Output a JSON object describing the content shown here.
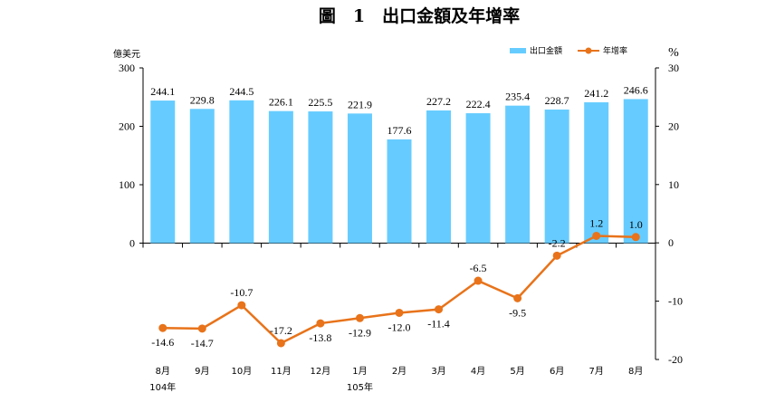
{
  "chart_data": {
    "type": "bar+line",
    "title": "圖　1　出口金額及年增率",
    "left_axis_label": "億美元",
    "right_axis_label": "%",
    "categories": [
      "8月",
      "9月",
      "10月",
      "11月",
      "12月",
      "1月",
      "2月",
      "3月",
      "4月",
      "5月",
      "6月",
      "7月",
      "8月"
    ],
    "year_labels": [
      {
        "index": 0,
        "label": "104年"
      },
      {
        "index": 5,
        "label": "105年"
      }
    ],
    "series": [
      {
        "name": "出口金額",
        "type": "bar",
        "axis": "left",
        "color": "#66ccff",
        "values": [
          244.1,
          229.8,
          244.5,
          226.1,
          225.5,
          221.9,
          177.6,
          227.2,
          222.4,
          235.4,
          228.7,
          241.2,
          246.6
        ],
        "labels": [
          "244.1",
          "229.8",
          "244.5",
          "226.1",
          "225.5",
          "221.9",
          "177.6",
          "227.2",
          "222.4",
          "235.4",
          "228.7",
          "241.2",
          "246.6"
        ]
      },
      {
        "name": "年增率",
        "type": "line",
        "axis": "right",
        "color": "#e8731a",
        "values": [
          -14.6,
          -14.7,
          -10.7,
          -17.2,
          -13.8,
          -12.9,
          -12.0,
          -11.4,
          -6.5,
          -9.5,
          -2.2,
          1.2,
          1.0
        ],
        "labels": [
          "-14.6",
          "-14.7",
          "-10.7",
          "-17.2",
          "-13.8",
          "-12.9",
          "-12.0",
          "-11.4",
          "-6.5",
          "-9.5",
          "-2.2",
          "1.2",
          "1.0"
        ]
      }
    ],
    "left_ticks": [
      "300",
      "200",
      "100",
      "0"
    ],
    "left_tick_values": [
      300,
      200,
      100,
      0
    ],
    "right_ticks": [
      "30",
      "20",
      "10",
      "0",
      "-10",
      "-20"
    ],
    "right_tick_values": [
      30,
      20,
      10,
      0,
      -10,
      -20
    ],
    "ylim_left": [
      0,
      300
    ],
    "ylim_right": [
      -20,
      30
    ],
    "legend_position": "top-right"
  }
}
